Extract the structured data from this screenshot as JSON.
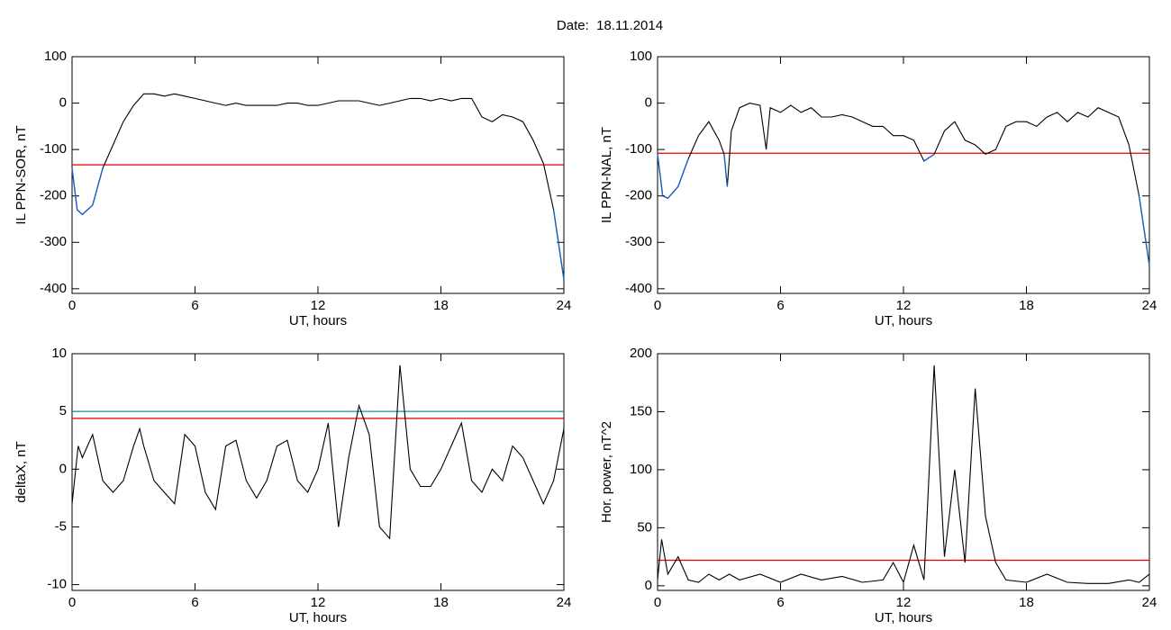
{
  "title": "Date:  18.11.2014",
  "chart_data": [
    {
      "type": "line",
      "xlabel": "UT, hours",
      "ylabel": "IL PPN-SOR, nT",
      "xlim": [
        0,
        24
      ],
      "xticks": [
        0,
        6,
        12,
        18,
        24
      ],
      "ylim": [
        -410,
        100
      ],
      "yticks": [
        100,
        0,
        -100,
        -200,
        -300,
        -400
      ],
      "below_color": "#1f5fc8",
      "hlines": [
        {
          "value": -133,
          "color": "#e00000"
        }
      ],
      "series": [
        {
          "color": "#000000",
          "x": [
            0,
            0.25,
            0.5,
            1,
            1.5,
            2,
            2.5,
            3,
            3.5,
            4,
            4.5,
            5,
            5.5,
            6,
            6.5,
            7,
            7.5,
            8,
            8.5,
            9,
            9.5,
            10,
            10.5,
            11,
            11.5,
            12,
            12.5,
            13,
            13.5,
            14,
            14.5,
            15,
            15.5,
            16,
            16.5,
            17,
            17.5,
            18,
            18.5,
            19,
            19.5,
            20,
            20.5,
            21,
            21.5,
            22,
            22.5,
            23,
            23.5,
            24
          ],
          "values": [
            -140,
            -230,
            -240,
            -220,
            -140,
            -90,
            -40,
            -5,
            20,
            20,
            15,
            20,
            15,
            10,
            5,
            0,
            -5,
            0,
            -5,
            -5,
            -5,
            -5,
            0,
            0,
            -5,
            -5,
            0,
            5,
            5,
            5,
            0,
            -5,
            0,
            5,
            10,
            10,
            5,
            10,
            5,
            10,
            10,
            -30,
            -40,
            -25,
            -30,
            -40,
            -80,
            -130,
            -230,
            -380
          ]
        }
      ]
    },
    {
      "type": "line",
      "xlabel": "UT, hours",
      "ylabel": "IL PPN-NAL, nT",
      "xlim": [
        0,
        24
      ],
      "xticks": [
        0,
        6,
        12,
        18,
        24
      ],
      "ylim": [
        -410,
        100
      ],
      "yticks": [
        100,
        0,
        -100,
        -200,
        -300,
        -400
      ],
      "below_color": "#1f5fc8",
      "hlines": [
        {
          "value": -108,
          "color": "#e00000"
        }
      ],
      "series": [
        {
          "color": "#000000",
          "x": [
            0,
            0.25,
            0.5,
            1,
            1.5,
            2,
            2.5,
            3,
            3.25,
            3.4,
            3.6,
            4,
            4.5,
            5,
            5.3,
            5.5,
            6,
            6.5,
            7,
            7.5,
            8,
            8.5,
            9,
            9.5,
            10,
            10.5,
            11,
            11.5,
            12,
            12.5,
            13,
            13.5,
            14,
            14.5,
            15,
            15.5,
            16,
            16.5,
            17,
            17.5,
            18,
            18.5,
            19,
            19.5,
            20,
            20.5,
            21,
            21.5,
            22,
            22.5,
            23,
            23.5,
            24
          ],
          "values": [
            -110,
            -200,
            -205,
            -180,
            -120,
            -70,
            -40,
            -80,
            -110,
            -180,
            -60,
            -10,
            0,
            -5,
            -100,
            -10,
            -20,
            -5,
            -20,
            -10,
            -30,
            -30,
            -25,
            -30,
            -40,
            -50,
            -50,
            -70,
            -70,
            -80,
            -125,
            -110,
            -60,
            -40,
            -80,
            -90,
            -110,
            -100,
            -50,
            -40,
            -40,
            -50,
            -30,
            -20,
            -40,
            -20,
            -30,
            -10,
            -20,
            -30,
            -90,
            -200,
            -350
          ]
        }
      ]
    },
    {
      "type": "line",
      "xlabel": "UT, hours",
      "ylabel": "deltaX, nT",
      "xlim": [
        0,
        24
      ],
      "xticks": [
        0,
        6,
        12,
        18,
        24
      ],
      "ylim": [
        -10.5,
        10
      ],
      "yticks": [
        10,
        5,
        0,
        -5,
        -10
      ],
      "hlines": [
        {
          "value": 5.0,
          "color": "#1a9a9a"
        },
        {
          "value": 4.4,
          "color": "#e00000"
        }
      ],
      "series": [
        {
          "color": "#000000",
          "x": [
            0,
            0.3,
            0.5,
            1,
            1.5,
            2,
            2.5,
            3,
            3.3,
            3.5,
            4,
            4.5,
            5,
            5.5,
            6,
            6.5,
            7,
            7.5,
            8,
            8.5,
            9,
            9.5,
            10,
            10.5,
            11,
            11.5,
            12,
            12.5,
            13,
            13.5,
            14,
            14.5,
            15,
            15.5,
            16,
            16.5,
            17,
            17.5,
            18,
            18.5,
            19,
            19.5,
            20,
            20.5,
            21,
            21.5,
            22,
            22.5,
            23,
            23.5,
            24
          ],
          "values": [
            -3,
            2,
            1,
            3,
            -1,
            -2,
            -1,
            2,
            3.5,
            2,
            -1,
            -2,
            -3,
            3,
            2,
            -2,
            -3.5,
            2,
            2.5,
            -1,
            -2.5,
            -1,
            2,
            2.5,
            -1,
            -2,
            0,
            4,
            -5,
            1,
            5.5,
            3,
            -5,
            -6,
            9,
            0,
            -1.5,
            -1.5,
            0,
            2,
            4,
            -1,
            -2,
            0,
            -1,
            2,
            1,
            -1,
            -3,
            -1,
            3.5
          ]
        }
      ]
    },
    {
      "type": "line",
      "xlabel": "UT, hours",
      "ylabel": "Hor. power, nT^2",
      "xlim": [
        0,
        24
      ],
      "xticks": [
        0,
        6,
        12,
        18,
        24
      ],
      "ylim": [
        -4,
        200
      ],
      "yticks": [
        200,
        150,
        100,
        50,
        0
      ],
      "hlines": [
        {
          "value": 22,
          "color": "#e00000"
        }
      ],
      "series": [
        {
          "color": "#000000",
          "x": [
            0,
            0.2,
            0.5,
            1,
            1.5,
            2,
            2.5,
            3,
            3.5,
            4,
            5,
            6,
            7,
            8,
            9,
            10,
            11,
            11.5,
            12,
            12.5,
            13,
            13.5,
            14,
            14.5,
            15,
            15.5,
            16,
            16.5,
            17,
            18,
            19,
            20,
            21,
            22,
            23,
            23.5,
            24
          ],
          "values": [
            5,
            40,
            10,
            25,
            5,
            3,
            10,
            5,
            10,
            5,
            10,
            3,
            10,
            5,
            8,
            3,
            5,
            20,
            3,
            35,
            5,
            190,
            25,
            100,
            20,
            170,
            60,
            20,
            5,
            3,
            10,
            3,
            2,
            2,
            5,
            3,
            10
          ]
        }
      ]
    }
  ]
}
